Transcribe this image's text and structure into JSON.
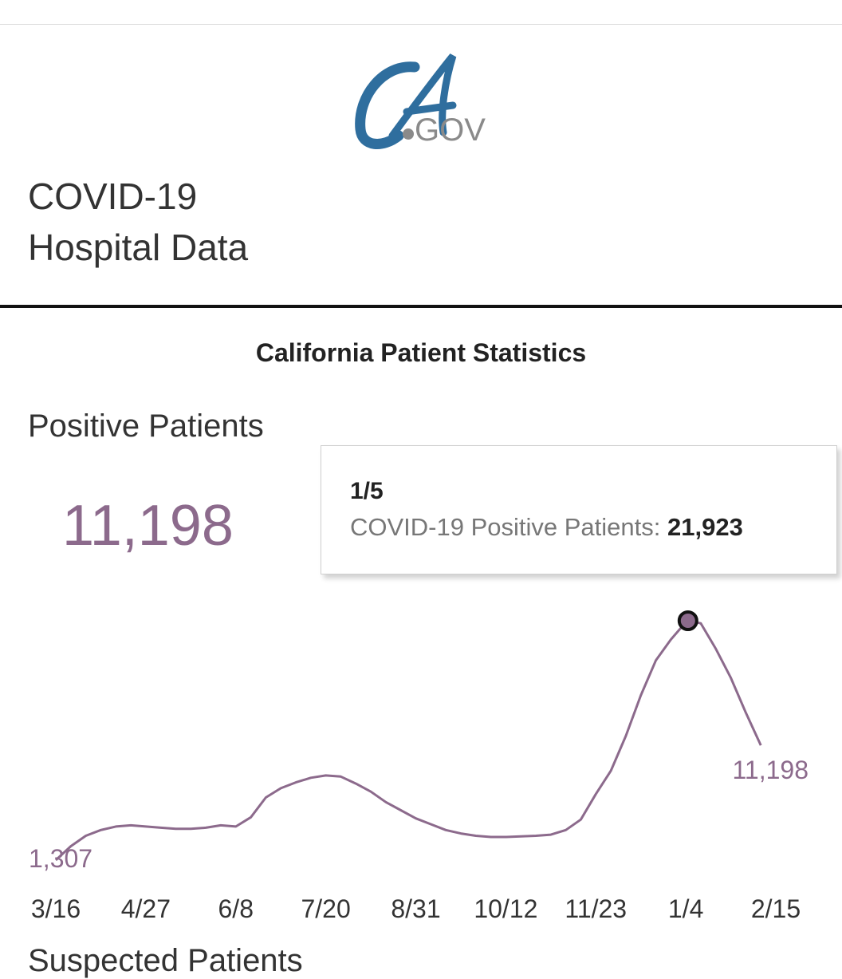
{
  "logo": {
    "text_main": "CA",
    "text_suffix": ".GOV",
    "primary_color": "#2f6e9e",
    "suffix_color": "#8a8a8a"
  },
  "page": {
    "title_line1": "COVID-19",
    "title_line2": "Hospital Data"
  },
  "section": {
    "title": "California Patient Statistics"
  },
  "metric": {
    "label": "Positive Patients",
    "value": "11,198"
  },
  "next_section": {
    "label": "Suspected Patients"
  },
  "tooltip": {
    "date": "1/5",
    "series_label": "COVID-19 Positive Patients:",
    "value": "21,923"
  },
  "chart_data": {
    "type": "line",
    "title": "",
    "xlabel": "",
    "ylabel": "",
    "line_color": "#8c6a8c",
    "x_tick_labels": [
      "3/16",
      "4/27",
      "6/8",
      "7/20",
      "8/31",
      "10/12",
      "11/23",
      "1/4",
      "2/15"
    ],
    "x_tick_days": [
      0,
      42,
      84,
      126,
      168,
      210,
      252,
      294,
      336
    ],
    "series": [
      {
        "days": [
          0,
          7,
          14,
          21,
          28,
          35,
          42,
          49,
          56,
          63,
          70,
          77,
          84,
          91,
          98,
          105,
          112,
          119,
          126,
          133,
          140,
          147,
          154,
          161,
          168,
          175,
          182,
          189,
          196,
          203,
          210,
          217,
          224,
          231,
          238,
          245,
          252,
          259,
          266,
          273,
          280,
          287,
          294,
          295,
          301,
          308,
          315,
          322,
          329
        ],
        "values": [
          1307,
          2500,
          3400,
          3900,
          4200,
          4300,
          4200,
          4100,
          4000,
          4000,
          4100,
          4300,
          4200,
          5000,
          6700,
          7500,
          8000,
          8400,
          8600,
          8500,
          7900,
          7200,
          6300,
          5600,
          4900,
          4400,
          3900,
          3600,
          3400,
          3300,
          3300,
          3350,
          3400,
          3500,
          3900,
          4800,
          7000,
          9000,
          12000,
          15500,
          18500,
          20300,
          21800,
          21923,
          21700,
          19500,
          17000,
          14000,
          11198
        ]
      }
    ],
    "labels": {
      "start": "1,307",
      "end": "11,198"
    },
    "highlight": {
      "day": 295,
      "value": 21923
    },
    "ylim": [
      0,
      25000
    ]
  }
}
